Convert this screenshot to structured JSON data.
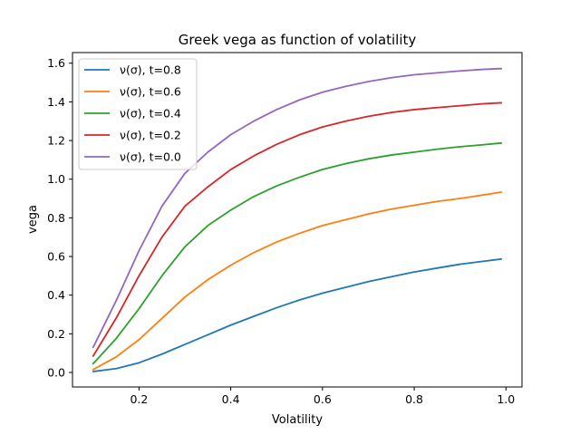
{
  "chart_data": {
    "type": "line",
    "title": "Greek vega as function of volatility",
    "xlabel": "Volatility",
    "ylabel": "vega",
    "xlim": [
      0.055,
      1.035
    ],
    "ylim": [
      -0.075,
      1.655
    ],
    "xticks": [
      0.2,
      0.4,
      0.6,
      0.8,
      1.0
    ],
    "xtick_labels": [
      "0.2",
      "0.4",
      "0.6",
      "0.8",
      "1.0"
    ],
    "yticks": [
      0.0,
      0.2,
      0.4,
      0.6,
      0.8,
      1.0,
      1.2,
      1.4,
      1.6
    ],
    "ytick_labels": [
      "0.0",
      "0.2",
      "0.4",
      "0.6",
      "0.8",
      "1.0",
      "1.2",
      "1.4",
      "1.6"
    ],
    "grid": false,
    "legend_position": "top-left",
    "x": [
      0.1,
      0.15,
      0.2,
      0.25,
      0.3,
      0.35,
      0.4,
      0.45,
      0.5,
      0.55,
      0.6,
      0.65,
      0.7,
      0.75,
      0.8,
      0.85,
      0.9,
      0.95,
      0.99
    ],
    "series": [
      {
        "name": "ν(σ), t=0.8",
        "color": "#1f77b4",
        "values": [
          0.005,
          0.02,
          0.05,
          0.095,
          0.145,
          0.195,
          0.245,
          0.29,
          0.335,
          0.375,
          0.41,
          0.44,
          0.47,
          0.495,
          0.52,
          0.54,
          0.56,
          0.575,
          0.587
        ]
      },
      {
        "name": "ν(σ), t=0.6",
        "color": "#ff7f0e",
        "values": [
          0.015,
          0.08,
          0.17,
          0.28,
          0.39,
          0.48,
          0.555,
          0.62,
          0.675,
          0.72,
          0.76,
          0.79,
          0.82,
          0.845,
          0.865,
          0.885,
          0.9,
          0.918,
          0.933
        ]
      },
      {
        "name": "ν(σ), t=0.4",
        "color": "#2ca02c",
        "values": [
          0.045,
          0.175,
          0.33,
          0.5,
          0.65,
          0.76,
          0.84,
          0.91,
          0.965,
          1.01,
          1.05,
          1.08,
          1.105,
          1.125,
          1.14,
          1.155,
          1.168,
          1.178,
          1.187
        ]
      },
      {
        "name": "ν(σ), t=0.2",
        "color": "#d62728",
        "values": [
          0.085,
          0.28,
          0.5,
          0.7,
          0.86,
          0.96,
          1.05,
          1.12,
          1.18,
          1.23,
          1.27,
          1.3,
          1.325,
          1.345,
          1.36,
          1.37,
          1.38,
          1.39,
          1.395
        ]
      },
      {
        "name": "ν(σ), t=0.0",
        "color": "#9467bd",
        "values": [
          0.13,
          0.37,
          0.63,
          0.86,
          1.03,
          1.14,
          1.23,
          1.3,
          1.36,
          1.41,
          1.45,
          1.48,
          1.505,
          1.525,
          1.54,
          1.55,
          1.56,
          1.568,
          1.572
        ]
      }
    ]
  }
}
